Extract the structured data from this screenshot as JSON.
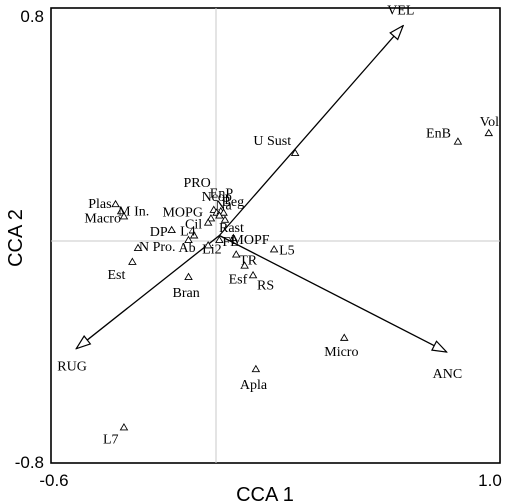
{
  "chart_data": {
    "type": "scatter",
    "title": "",
    "xlabel": "CCA 1",
    "ylabel": "CCA 2",
    "xlim": [
      -0.6,
      1.0
    ],
    "ylim": [
      -0.8,
      0.8
    ],
    "x_ticks": [
      "-0.6",
      "1.0"
    ],
    "y_ticks": [
      "0.8",
      "-0.8"
    ],
    "grid": false,
    "zero_lines": true,
    "marker": "open-triangle",
    "points": [
      {
        "label": "Vol",
        "x": 0.96,
        "y": 0.36
      },
      {
        "label": "EnB",
        "x": 0.85,
        "y": 0.33
      },
      {
        "label": "U Sust",
        "x": 0.27,
        "y": 0.29
      },
      {
        "label": "PRO",
        "x": -0.02,
        "y": 0.09
      },
      {
        "label": "Ncop",
        "x": -0.01,
        "y": 0.08
      },
      {
        "label": "EnP",
        "x": 0.005,
        "y": 0.085
      },
      {
        "label": "Beg",
        "x": 0.015,
        "y": 0.08
      },
      {
        "label": "MOPG",
        "x": -0.03,
        "y": 0.06
      },
      {
        "label": "Cil",
        "x": -0.04,
        "y": 0.045
      },
      {
        "label": "Na",
        "x": 0.0,
        "y": 0.07
      },
      {
        "label": "Rast",
        "x": 0.02,
        "y": 0.055
      },
      {
        "label": "Plas",
        "x": -0.37,
        "y": 0.11
      },
      {
        "label": "M In.",
        "x": -0.35,
        "y": 0.085
      },
      {
        "label": "Macro",
        "x": -0.34,
        "y": 0.067
      },
      {
        "label": "DP",
        "x": -0.17,
        "y": 0.019
      },
      {
        "label": "L4",
        "x": -0.09,
        "y": 0.0
      },
      {
        "label": "MOPF",
        "x": 0.05,
        "y": -0.009
      },
      {
        "label": "FL",
        "x": 0.0,
        "y": -0.016
      },
      {
        "label": "L5",
        "x": 0.195,
        "y": -0.049
      },
      {
        "label": "N Pro.",
        "x": -0.29,
        "y": -0.044
      },
      {
        "label": "Ab",
        "x": -0.11,
        "y": -0.016
      },
      {
        "label": "Li2",
        "x": -0.04,
        "y": -0.035
      },
      {
        "label": "TR",
        "x": 0.06,
        "y": -0.067
      },
      {
        "label": "Est",
        "x": -0.31,
        "y": -0.093
      },
      {
        "label": "Bran",
        "x": -0.11,
        "y": -0.146
      },
      {
        "label": "RS",
        "x": 0.12,
        "y": -0.14
      },
      {
        "label": "Esf",
        "x": 0.09,
        "y": -0.106
      },
      {
        "label": "Micro",
        "x": 0.445,
        "y": -0.36
      },
      {
        "label": "Apla",
        "x": 0.13,
        "y": -0.47
      },
      {
        "label": "L7",
        "x": -0.34,
        "y": -0.675
      }
    ],
    "vectors": [
      {
        "label": "VEL",
        "x": 0.655,
        "y": 0.738
      },
      {
        "label": "RUG",
        "x": -0.51,
        "y": -0.398
      },
      {
        "label": "ANC",
        "x": 0.81,
        "y": -0.41
      }
    ]
  }
}
